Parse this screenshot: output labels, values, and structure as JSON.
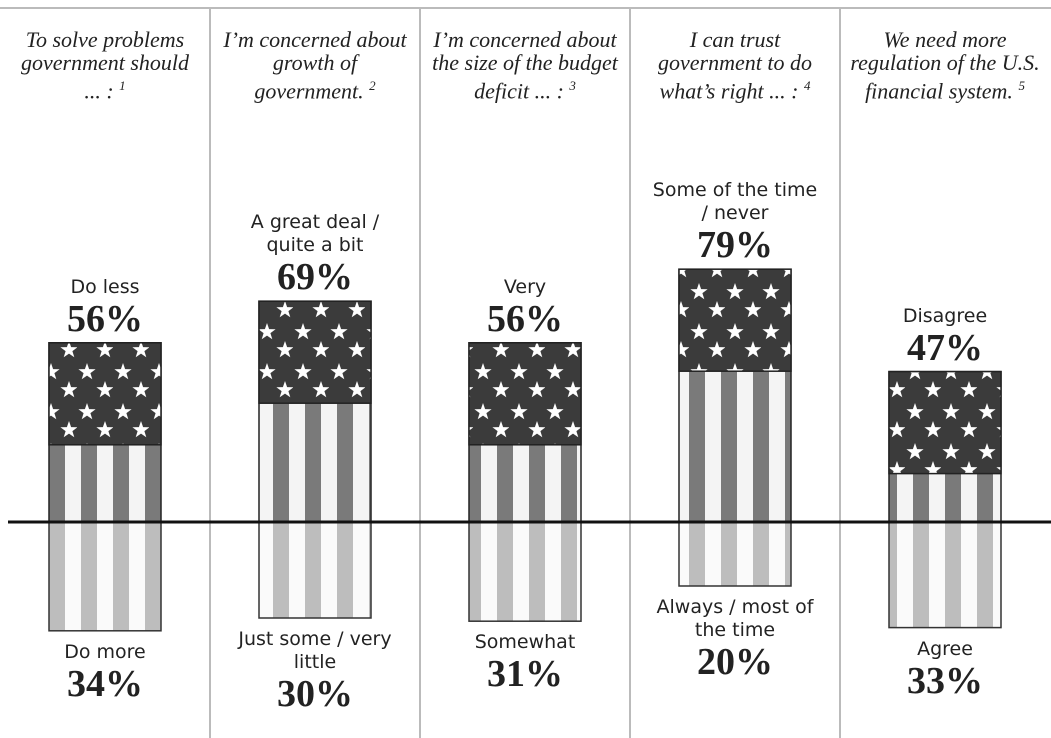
{
  "chart_data": {
    "type": "diverging_bar",
    "panels": [
      {
        "title": "To solve problems government should ... :",
        "note": "1",
        "top_label": "Do less",
        "top_value": 56,
        "top_value_label": "56%",
        "bottom_label": "Do more",
        "bottom_value": 34,
        "bottom_value_label": "34%"
      },
      {
        "title": "I’m concerned about growth of government.",
        "note": "2",
        "top_label": "A great deal / quite a bit",
        "top_value": 69,
        "top_value_label": "69%",
        "bottom_label": "Just some / very little",
        "bottom_value": 30,
        "bottom_value_label": "30%"
      },
      {
        "title": "I’m concerned about the size of the budget deficit ... :",
        "note": "3",
        "top_label": "Very",
        "top_value": 56,
        "top_value_label": "56%",
        "bottom_label": "Somewhat",
        "bottom_value": 31,
        "bottom_value_label": "31%"
      },
      {
        "title": "I can trust government to do what’s right ... :",
        "note": "4",
        "top_label": "Some of the time / never",
        "top_value": 79,
        "top_value_label": "79%",
        "bottom_label": "Always / most of the time",
        "bottom_value": 20,
        "bottom_value_label": "20%"
      },
      {
        "title": "We need more regulation of the U.S. financial system.",
        "note": "5",
        "top_label": "Disagree",
        "top_value": 47,
        "top_value_label": "47%",
        "bottom_label": "Agree",
        "bottom_value": 33,
        "bottom_value_label": "33%"
      }
    ]
  }
}
